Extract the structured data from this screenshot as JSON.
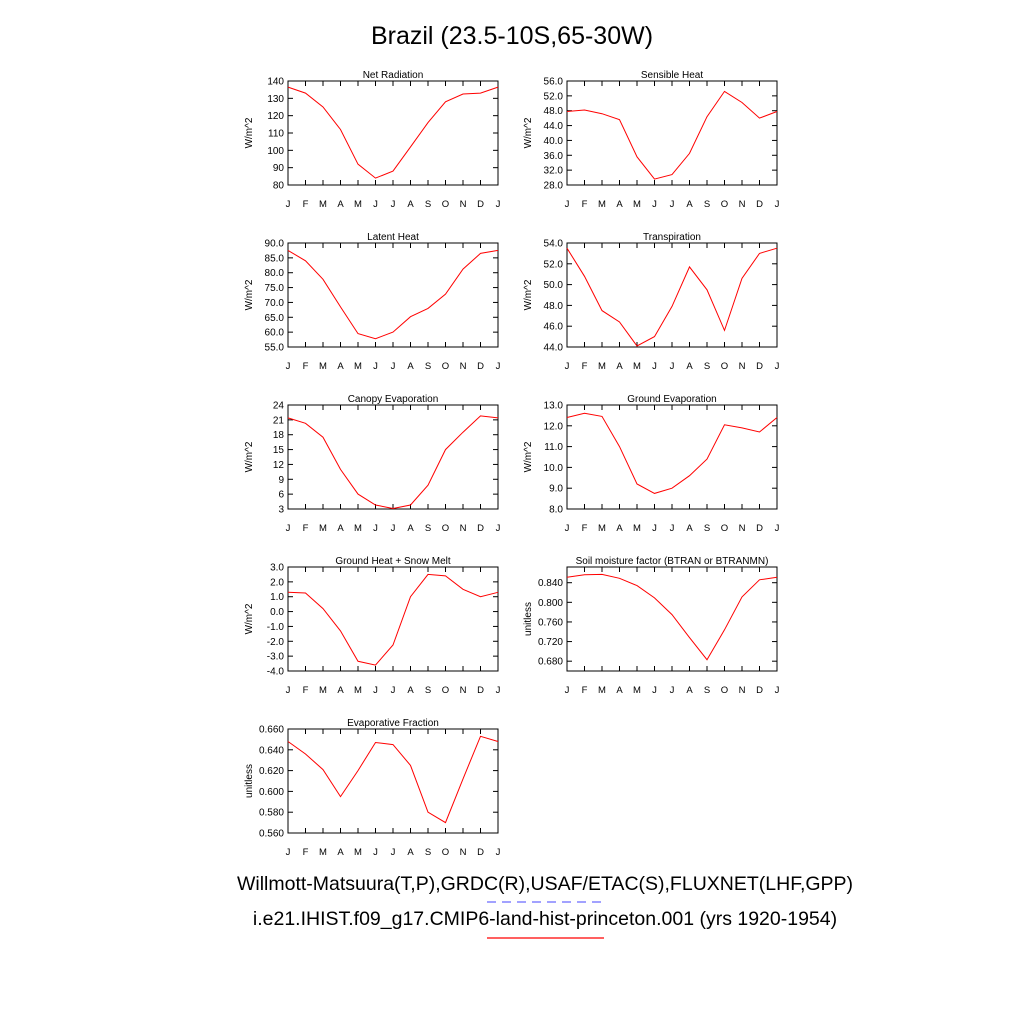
{
  "title": "Brazil (23.5-10S,65-30W)",
  "legend": {
    "line1": "Willmott-Matsuura(T,P),GRDC(R),USAF/ETAC(S),FLUXNET(LHF,GPP)",
    "line2": "i.e21.IHIST.f09_g17.CMIP6-land-hist-princeton.001 (yrs 1920-1954)",
    "obs_color": "#6b6bff",
    "model_color": "#ff0000"
  },
  "chart_data": [
    {
      "type": "line",
      "title": "Net Radiation",
      "ylabel": "W/m^2",
      "x": [
        "J",
        "F",
        "M",
        "A",
        "M",
        "J",
        "J",
        "A",
        "S",
        "O",
        "N",
        "D",
        "J"
      ],
      "ylim": [
        80,
        140
      ],
      "yticks": [
        "80",
        "90",
        "100",
        "110",
        "120",
        "130",
        "140"
      ],
      "series": [
        {
          "color": "#ff0000",
          "values": [
            136.5,
            133,
            125,
            112,
            92,
            84,
            88,
            102,
            116,
            128,
            132.5,
            133,
            136.5
          ]
        }
      ]
    },
    {
      "type": "line",
      "title": "Sensible Heat",
      "ylabel": "W/m^2",
      "x": [
        "J",
        "F",
        "M",
        "A",
        "M",
        "J",
        "J",
        "A",
        "S",
        "O",
        "N",
        "D",
        "J"
      ],
      "ylim": [
        28,
        56
      ],
      "yticks": [
        "28.0",
        "32.0",
        "36.0",
        "40.0",
        "44.0",
        "48.0",
        "52.0",
        "56.0"
      ],
      "series": [
        {
          "color": "#ff0000",
          "values": [
            47.8,
            48.2,
            47.2,
            45.6,
            35.6,
            29.6,
            30.8,
            36.5,
            46.4,
            53.2,
            50.2,
            46.0,
            47.8
          ]
        }
      ]
    },
    {
      "type": "line",
      "title": "Latent Heat",
      "ylabel": "W/m^2",
      "x": [
        "J",
        "F",
        "M",
        "A",
        "M",
        "J",
        "J",
        "A",
        "S",
        "O",
        "N",
        "D",
        "J"
      ],
      "ylim": [
        55,
        90
      ],
      "yticks": [
        "55.0",
        "60.0",
        "65.0",
        "70.0",
        "75.0",
        "80.0",
        "85.0",
        "90.0"
      ],
      "series": [
        {
          "color": "#ff0000",
          "values": [
            87.5,
            84,
            77.8,
            68.5,
            59.5,
            57.8,
            60,
            65.2,
            68,
            72.8,
            81.2,
            86.5,
            87.5
          ]
        }
      ]
    },
    {
      "type": "line",
      "title": "Transpiration",
      "ylabel": "W/m^2",
      "x": [
        "J",
        "F",
        "M",
        "A",
        "M",
        "J",
        "J",
        "A",
        "S",
        "O",
        "N",
        "D",
        "J"
      ],
      "ylim": [
        44,
        54
      ],
      "yticks": [
        "44.0",
        "46.0",
        "48.0",
        "50.0",
        "52.0",
        "54.0"
      ],
      "series": [
        {
          "color": "#ff0000",
          "values": [
            53.5,
            50.8,
            47.5,
            46.4,
            44.1,
            45.0,
            47.9,
            51.7,
            49.5,
            45.6,
            50.6,
            53.0,
            53.5
          ]
        }
      ]
    },
    {
      "type": "line",
      "title": "Canopy Evaporation",
      "ylabel": "W/m^2",
      "x": [
        "J",
        "F",
        "M",
        "A",
        "M",
        "J",
        "J",
        "A",
        "S",
        "O",
        "N",
        "D",
        "J"
      ],
      "ylim": [
        3,
        24
      ],
      "yticks": [
        "3",
        "6",
        "9",
        "12",
        "15",
        "18",
        "21",
        "24"
      ],
      "series": [
        {
          "color": "#ff0000",
          "values": [
            21.4,
            20.3,
            17.5,
            11,
            6,
            3.8,
            3.1,
            3.8,
            7.8,
            15,
            18.5,
            21.8,
            21.4
          ]
        }
      ]
    },
    {
      "type": "line",
      "title": "Ground Evaporation",
      "ylabel": "W/m^2",
      "x": [
        "J",
        "F",
        "M",
        "A",
        "M",
        "J",
        "J",
        "A",
        "S",
        "O",
        "N",
        "D",
        "J"
      ],
      "ylim": [
        8,
        13
      ],
      "yticks": [
        "8.0",
        "9.0",
        "10.0",
        "11.0",
        "12.0",
        "13.0"
      ],
      "series": [
        {
          "color": "#ff0000",
          "values": [
            12.4,
            12.6,
            12.45,
            11,
            9.2,
            8.75,
            9,
            9.6,
            10.4,
            12.05,
            11.9,
            11.7,
            12.4
          ]
        }
      ]
    },
    {
      "type": "line",
      "title": "Ground Heat + Snow Melt",
      "ylabel": "W/m^2",
      "x": [
        "J",
        "F",
        "M",
        "A",
        "M",
        "J",
        "J",
        "A",
        "S",
        "O",
        "N",
        "D",
        "J"
      ],
      "ylim": [
        -4,
        3
      ],
      "yticks": [
        "-4.0",
        "-3.0",
        "-2.0",
        "-1.0",
        "0.0",
        "1.0",
        "2.0",
        "3.0"
      ],
      "series": [
        {
          "color": "#ff0000",
          "values": [
            1.3,
            1.25,
            0.2,
            -1.3,
            -3.35,
            -3.6,
            -2.25,
            1,
            2.5,
            2.4,
            1.5,
            1,
            1.3
          ]
        }
      ]
    },
    {
      "type": "line",
      "title": "Soil moisture factor (BTRAN or BTRANMN)",
      "ylabel": "unitless",
      "x": [
        "J",
        "F",
        "M",
        "A",
        "M",
        "J",
        "J",
        "A",
        "S",
        "O",
        "N",
        "D",
        "J"
      ],
      "ylim": [
        0.66,
        0.872
      ],
      "yticks": [
        "0.680",
        "0.720",
        "0.760",
        "0.800",
        "0.840"
      ],
      "ytick_values": [
        0.68,
        0.72,
        0.76,
        0.8,
        0.84
      ],
      "series": [
        {
          "color": "#ff0000",
          "values": [
            0.851,
            0.856,
            0.857,
            0.849,
            0.834,
            0.809,
            0.775,
            0.728,
            0.683,
            0.744,
            0.811,
            0.846,
            0.851
          ]
        }
      ]
    },
    {
      "type": "line",
      "title": "Evaporative Fraction",
      "ylabel": "unitless",
      "x": [
        "J",
        "F",
        "M",
        "A",
        "M",
        "J",
        "J",
        "A",
        "S",
        "O",
        "N",
        "D",
        "J"
      ],
      "ylim": [
        0.56,
        0.66
      ],
      "yticks": [
        "0.560",
        "0.580",
        "0.600",
        "0.620",
        "0.640",
        "0.660"
      ],
      "series": [
        {
          "color": "#ff0000",
          "values": [
            0.648,
            0.636,
            0.621,
            0.595,
            0.62,
            0.647,
            0.645,
            0.625,
            0.58,
            0.57,
            0.612,
            0.653,
            0.648
          ]
        }
      ]
    }
  ]
}
